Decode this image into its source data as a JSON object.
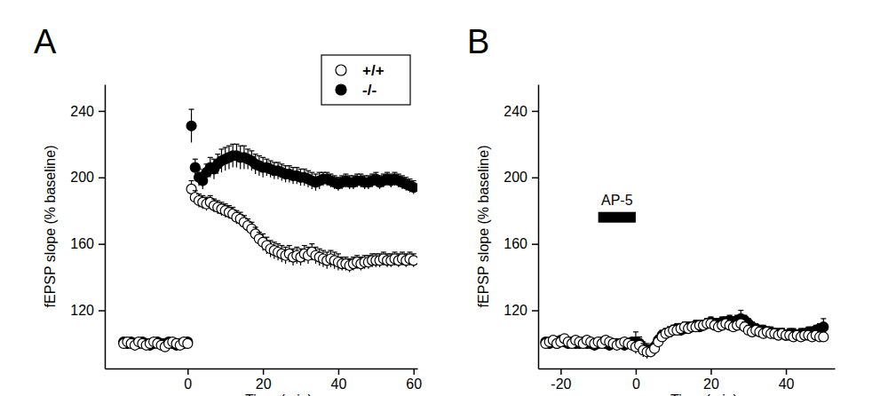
{
  "chart_data": [
    {
      "type": "scatter",
      "title": "A",
      "x_label": "Time (min)",
      "y_label": "fEPSP slope (% baseline)",
      "xlim": [
        -22,
        61
      ],
      "xticks": [
        0,
        20,
        40,
        60
      ],
      "ylim": [
        85,
        256
      ],
      "yticks": [
        120,
        160,
        200,
        240
      ],
      "legend": "upper right",
      "x": [
        -17,
        -16,
        -15,
        -14,
        -13,
        -12,
        -11,
        -10,
        -9,
        -8,
        -7,
        -6,
        -5,
        -4,
        -3,
        -2,
        -1,
        0,
        1,
        2,
        3,
        4,
        5,
        6,
        7,
        8,
        9,
        10,
        11,
        12,
        13,
        14,
        15,
        16,
        17,
        18,
        19,
        20,
        21,
        22,
        23,
        24,
        25,
        26,
        27,
        28,
        29,
        30,
        31,
        32,
        33,
        34,
        35,
        36,
        37,
        38,
        39,
        40,
        41,
        42,
        43,
        44,
        45,
        46,
        47,
        48,
        49,
        50,
        51,
        52,
        53,
        54,
        55,
        56,
        57,
        58,
        59,
        60
      ],
      "series": [
        {
          "name": "+/+",
          "color": "#000000",
          "marker": "circle-open",
          "values": [
            100,
            101,
            100,
            99,
            101,
            100,
            99,
            100,
            101,
            100,
            99,
            98,
            100,
            101,
            100,
            99,
            101,
            100,
            193,
            188,
            186,
            185,
            184,
            185,
            183,
            182,
            181,
            180,
            179,
            178,
            176,
            175,
            173,
            171,
            169,
            166,
            163,
            161,
            159,
            157,
            156,
            155,
            154,
            153,
            154,
            152,
            153,
            152,
            154,
            153,
            155,
            153,
            152,
            151,
            150,
            151,
            150,
            149,
            148,
            148,
            147,
            148,
            149,
            148,
            149,
            149,
            150,
            150,
            150,
            151,
            150,
            150,
            151,
            150,
            151,
            150,
            151,
            150
          ],
          "errors": [
            2,
            2,
            2,
            2,
            2,
            2,
            2,
            2,
            2,
            2,
            2,
            2,
            2,
            2,
            2,
            2,
            2,
            2,
            5,
            4,
            4,
            4,
            4,
            4,
            4,
            4,
            4,
            4,
            4,
            4,
            4,
            4,
            4,
            4,
            4,
            4,
            4,
            5,
            5,
            5,
            5,
            5,
            5,
            5,
            5,
            5,
            5,
            5,
            5,
            5,
            5,
            5,
            5,
            5,
            5,
            5,
            5,
            5,
            4,
            4,
            4,
            4,
            4,
            4,
            4,
            4,
            4,
            4,
            4,
            4,
            4,
            4,
            4,
            4,
            4,
            4,
            4,
            4
          ]
        },
        {
          "name": "-/-",
          "color": "#000000",
          "marker": "circle",
          "values": [
            101,
            100,
            101,
            100,
            100,
            101,
            100,
            99,
            100,
            101,
            100,
            100,
            101,
            100,
            99,
            100,
            100,
            101,
            231,
            206,
            200,
            198,
            203,
            206,
            205,
            208,
            210,
            211,
            212,
            213,
            213,
            212,
            212,
            211,
            210,
            208,
            207,
            206,
            206,
            205,
            204,
            204,
            203,
            202,
            202,
            201,
            201,
            200,
            200,
            199,
            198,
            197,
            198,
            199,
            199,
            198,
            197,
            196,
            197,
            198,
            197,
            197,
            198,
            198,
            197,
            197,
            198,
            199,
            197,
            198,
            199,
            198,
            199,
            198,
            197,
            196,
            195,
            194
          ],
          "errors": [
            2,
            2,
            2,
            2,
            2,
            2,
            2,
            2,
            2,
            2,
            2,
            2,
            2,
            2,
            2,
            2,
            2,
            2,
            10,
            5,
            5,
            5,
            5,
            6,
            6,
            6,
            7,
            7,
            7,
            7,
            7,
            7,
            7,
            6,
            6,
            6,
            6,
            6,
            5,
            5,
            5,
            5,
            5,
            5,
            5,
            5,
            5,
            5,
            5,
            5,
            5,
            5,
            5,
            4,
            4,
            4,
            4,
            4,
            4,
            4,
            4,
            4,
            4,
            4,
            4,
            4,
            4,
            4,
            4,
            4,
            4,
            4,
            4,
            4,
            4,
            4,
            4,
            4
          ]
        }
      ]
    },
    {
      "type": "scatter",
      "title": "B",
      "x_label": "Time (min)",
      "y_label": "fEPSP slope (% baseline)",
      "xlim": [
        -26,
        53
      ],
      "xticks": [
        -20,
        0,
        20,
        40
      ],
      "ylim": [
        85,
        256
      ],
      "yticks": [
        120,
        160,
        200,
        240
      ],
      "annotations": [
        {
          "text": "AP-5",
          "x_start": -10,
          "x_end": 0,
          "y": 176
        }
      ],
      "x": [
        -24,
        -23,
        -22,
        -21,
        -20,
        -19,
        -18,
        -17,
        -16,
        -15,
        -14,
        -13,
        -12,
        -11,
        -10,
        -9,
        -8,
        -7,
        -6,
        -5,
        -4,
        -3,
        -2,
        -1,
        0,
        1,
        2,
        3,
        4,
        5,
        6,
        7,
        8,
        9,
        10,
        11,
        12,
        13,
        14,
        15,
        16,
        17,
        18,
        19,
        20,
        21,
        22,
        23,
        24,
        25,
        26,
        27,
        28,
        29,
        30,
        31,
        32,
        33,
        34,
        35,
        36,
        37,
        38,
        39,
        40,
        41,
        42,
        43,
        44,
        45,
        46,
        47,
        48,
        49,
        50
      ],
      "series": [
        {
          "color": "#000000",
          "marker": "circle-open",
          "values": [
            100,
            101,
            102,
            100,
            101,
            103,
            101,
            100,
            102,
            101,
            100,
            102,
            101,
            100,
            101,
            100,
            102,
            101,
            100,
            99,
            100,
            101,
            100,
            99,
            98,
            99,
            96,
            95,
            95,
            97,
            101,
            104,
            106,
            107,
            108,
            108,
            109,
            110,
            109,
            110,
            110,
            111,
            111,
            112,
            112,
            111,
            110,
            111,
            112,
            111,
            110,
            111,
            112,
            110,
            108,
            107,
            108,
            107,
            106,
            107,
            106,
            106,
            105,
            106,
            105,
            105,
            104,
            105,
            104,
            105,
            105,
            104,
            105,
            104,
            104
          ],
          "errors": [
            2,
            2,
            2,
            2,
            2,
            2,
            2,
            2,
            2,
            2,
            2,
            2,
            2,
            2,
            2,
            2,
            2,
            2,
            2,
            2,
            2,
            2,
            2,
            2,
            4,
            4,
            4,
            4,
            3,
            3,
            3,
            3,
            3,
            3,
            3,
            3,
            3,
            3,
            3,
            3,
            3,
            3,
            3,
            3,
            3,
            3,
            3,
            3,
            3,
            3,
            3,
            3,
            4,
            3,
            3,
            3,
            3,
            3,
            3,
            3,
            3,
            3,
            3,
            3,
            3,
            3,
            3,
            3,
            3,
            3,
            3,
            3,
            3,
            3,
            3
          ]
        },
        {
          "color": "#000000",
          "marker": "circle",
          "values": [
            101,
            100,
            101,
            100,
            102,
            101,
            100,
            101,
            100,
            100,
            101,
            100,
            100,
            99,
            100,
            101,
            100,
            99,
            100,
            100,
            100,
            99,
            100,
            101,
            101,
            100,
            97,
            96,
            96,
            98,
            102,
            105,
            106,
            107,
            108,
            109,
            108,
            109,
            110,
            110,
            111,
            110,
            111,
            112,
            113,
            112,
            112,
            113,
            113,
            114,
            113,
            114,
            115,
            114,
            112,
            110,
            109,
            108,
            108,
            107,
            107,
            106,
            106,
            106,
            105,
            106,
            106,
            105,
            106,
            106,
            107,
            107,
            108,
            109,
            110
          ],
          "errors": [
            2,
            2,
            2,
            2,
            2,
            2,
            2,
            2,
            2,
            2,
            2,
            2,
            2,
            2,
            2,
            2,
            2,
            2,
            2,
            2,
            2,
            2,
            2,
            2,
            6,
            4,
            4,
            4,
            3,
            3,
            3,
            3,
            3,
            3,
            3,
            3,
            3,
            3,
            3,
            3,
            3,
            3,
            3,
            3,
            3,
            3,
            3,
            3,
            3,
            3,
            3,
            3,
            5,
            3,
            3,
            3,
            3,
            3,
            3,
            3,
            3,
            3,
            3,
            3,
            3,
            3,
            3,
            3,
            3,
            3,
            3,
            3,
            3,
            3,
            5
          ]
        }
      ]
    }
  ]
}
